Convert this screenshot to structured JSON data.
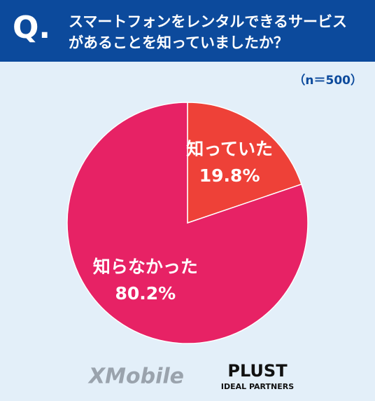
{
  "chart_data": {
    "type": "pie",
    "badge": "Q.",
    "title": "スマートフォンをレンタルできるサービスがあることを知っていましたか？",
    "note": "（n＝500）",
    "categories": [
      "知っていた",
      "知らなかった"
    ],
    "values": [
      19.8,
      80.2
    ],
    "value_labels": [
      "19.8%",
      "80.2%"
    ],
    "colors": [
      "#ee4138",
      "#e72265"
    ],
    "logos": [
      "XMobile",
      "PLUST",
      "IDEAL PARTNERS"
    ]
  }
}
